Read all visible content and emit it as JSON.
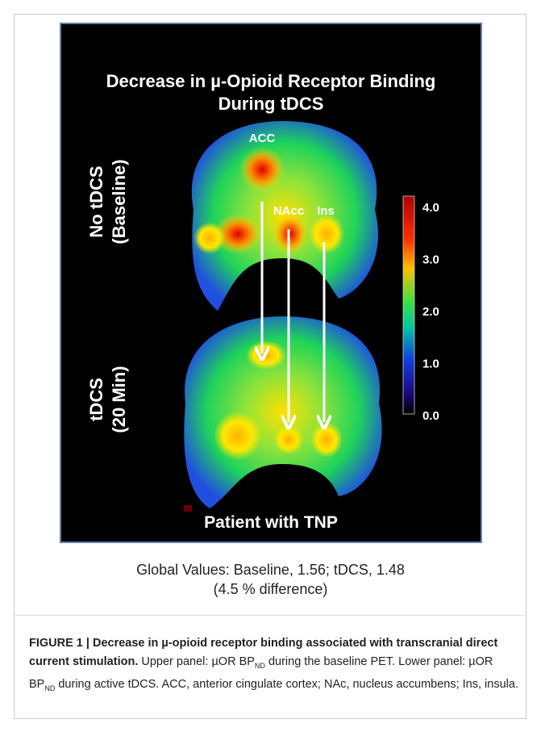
{
  "figure": {
    "panel_title": [
      "Decrease in µ-Opioid Receptor Binding",
      "During tDCS"
    ],
    "row_labels": [
      [
        "No tDCS",
        "(Baseline)"
      ],
      [
        "tDCS",
        "(20 Min)"
      ]
    ],
    "region_labels": [
      "ACC",
      "NAcc",
      "Ins"
    ],
    "colorbar_ticks": [
      "4.0",
      "3.0",
      "2.0",
      "1.0",
      "0.0"
    ],
    "panel_footer": "Patient with TNP",
    "global_values": [
      "Global Values: Baseline, 1.56; tDCS, 1.48",
      "(4.5 % difference)"
    ]
  },
  "caption": {
    "label": "FIGURE 1 | Decrease in µ-opioid receptor binding associated with transcranial direct current stimulation.",
    "parts": [
      " Upper panel: µOR BP",
      "ND",
      " during the baseline PET. Lower panel: µOR BP",
      "ND",
      " during active tDCS. ACC, anterior cingulate cortex; NAc, nucleus accumbens; Ins, insula."
    ]
  }
}
